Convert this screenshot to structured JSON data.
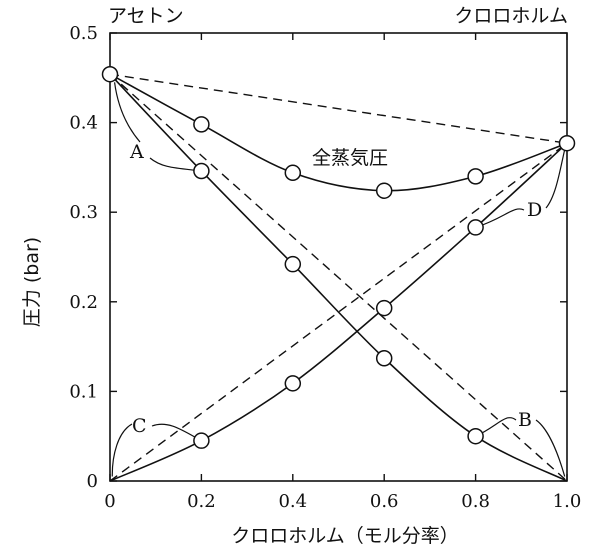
{
  "chart_data": {
    "type": "line",
    "xlabel": "クロロホルム（モル分率）",
    "ylabel": "圧力 (bar)",
    "xlim": [
      0,
      1.0
    ],
    "ylim": [
      0,
      0.5
    ],
    "x_ticks": [
      "0",
      "0.2",
      "0.4",
      "0.6",
      "0.8",
      "1.0"
    ],
    "y_ticks": [
      "0",
      "0.1",
      "0.2",
      "0.3",
      "0.4",
      "0.5"
    ],
    "corner_left": "アセトン",
    "corner_right": "クロロホルム",
    "series": [
      {
        "label": "全蒸気圧",
        "style": "solid",
        "x": [
          0,
          0.2,
          0.4,
          0.6,
          0.8,
          1.0
        ],
        "y": [
          0.454,
          0.398,
          0.344,
          0.324,
          0.34,
          0.377
        ]
      },
      {
        "label": "A",
        "style": "solid",
        "x": [
          0,
          0.2,
          0.4,
          0.6,
          0.8,
          1.0
        ],
        "y": [
          0.454,
          0.346,
          0.242,
          0.137,
          0.05,
          0
        ]
      },
      {
        "label": "D",
        "style": "solid",
        "x": [
          0,
          0.2,
          0.4,
          0.6,
          0.8,
          1.0
        ],
        "y": [
          0,
          0.045,
          0.109,
          0.193,
          0.283,
          0.377
        ]
      },
      {
        "label": "",
        "style": "dashed",
        "x": [
          0,
          1.0
        ],
        "y": [
          0.454,
          0.377
        ]
      },
      {
        "label": "",
        "style": "dashed",
        "x": [
          0,
          1.0
        ],
        "y": [
          0.454,
          0
        ]
      },
      {
        "label": "",
        "style": "dashed",
        "x": [
          0,
          1.0
        ],
        "y": [
          0,
          0.377
        ]
      }
    ],
    "annotations": {
      "A": "A",
      "B": "B",
      "C": "C",
      "D": "D",
      "total": "全蒸気圧"
    }
  }
}
